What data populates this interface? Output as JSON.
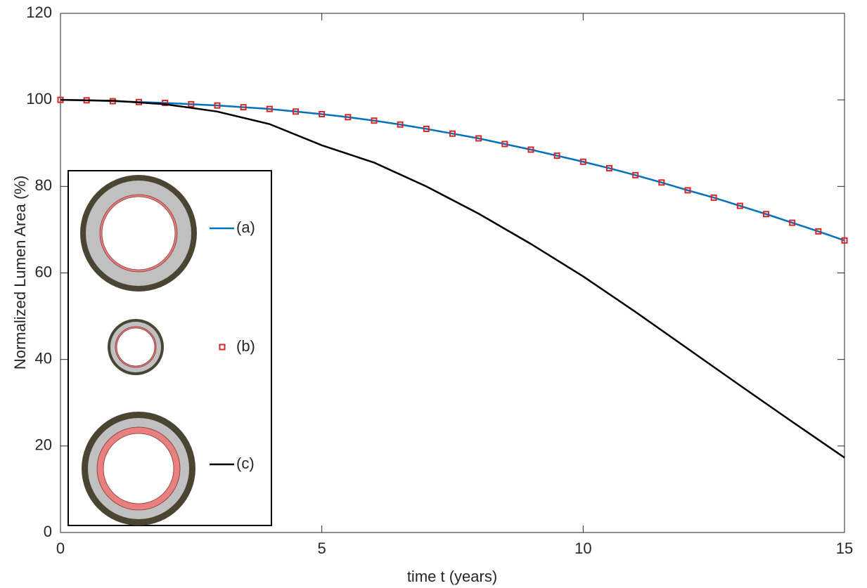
{
  "chart_data": {
    "type": "line",
    "xlabel": "time t (years)",
    "ylabel": "Normalized Lumen Area (%)",
    "x": [
      0,
      0.5,
      1,
      1.5,
      2,
      2.5,
      3,
      3.5,
      4,
      4.5,
      5,
      5.5,
      6,
      6.5,
      7,
      7.5,
      8,
      8.5,
      9,
      9.5,
      10,
      10.5,
      11,
      11.5,
      12,
      12.5,
      13,
      13.5,
      14,
      14.5,
      15
    ],
    "series": [
      {
        "name": "(a)",
        "color": "#0072bd",
        "style": "line",
        "values": [
          100,
          99.9,
          99.7,
          99.5,
          99.3,
          99.0,
          98.7,
          98.3,
          97.9,
          97.3,
          96.7,
          96.0,
          95.2,
          94.3,
          93.3,
          92.2,
          91.1,
          89.8,
          88.5,
          87.1,
          85.7,
          84.2,
          82.6,
          80.9,
          79.1,
          77.4,
          75.5,
          73.6,
          71.6,
          69.6,
          67.5
        ]
      },
      {
        "name": "(b)",
        "color": "#d62728",
        "style": "marker",
        "values": [
          100,
          99.9,
          99.7,
          99.5,
          99.3,
          99.0,
          98.7,
          98.3,
          97.9,
          97.3,
          96.7,
          96.0,
          95.2,
          94.3,
          93.3,
          92.2,
          91.1,
          89.8,
          88.5,
          87.1,
          85.7,
          84.2,
          82.6,
          80.9,
          79.1,
          77.4,
          75.5,
          73.6,
          71.6,
          69.6,
          67.5
        ]
      },
      {
        "name": "(c)",
        "color": "#000000",
        "style": "line",
        "x": [
          0,
          1,
          2,
          3,
          4,
          5,
          6,
          7,
          8,
          9,
          10,
          11,
          12,
          13,
          14,
          15
        ],
        "values": [
          100,
          99.8,
          99,
          97.3,
          94.4,
          89.5,
          85.5,
          80,
          73.7,
          66.7,
          59.2,
          51,
          42.5,
          34,
          25.6,
          17.3
        ]
      }
    ],
    "xlim": [
      0,
      15
    ],
    "xticks": [
      0,
      5,
      10,
      15
    ],
    "ylim": [
      0,
      120
    ],
    "yticks": [
      0,
      20,
      40,
      60,
      80,
      100,
      120
    ],
    "grid": false
  }
}
